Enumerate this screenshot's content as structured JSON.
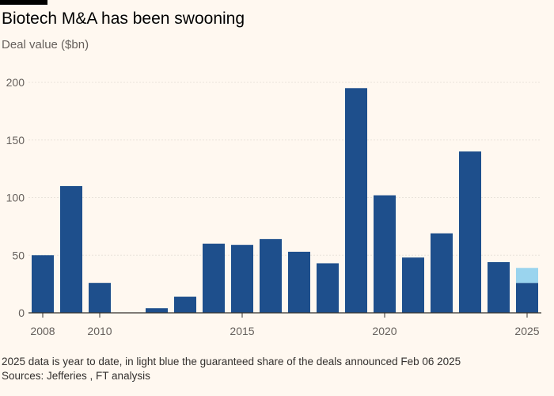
{
  "header": {
    "title": "Biotech M&A has been swooning",
    "subtitle": "Deal value ($bn)"
  },
  "footer": {
    "note": "2025 data is year to date, in light blue the guaranteed share of the deals announced Feb 06 2025",
    "source": "Sources: Jefferies , FT analysis"
  },
  "colors": {
    "background": "#fff8f0",
    "bar": "#1e4f8c",
    "bar_guaranteed": "#9ad4ee",
    "gridline": "#e9e2da",
    "axis": "#33302e",
    "tick_text": "#66605c"
  },
  "chart_data": {
    "type": "bar",
    "title": "Biotech M&A has been swooning",
    "ylabel": "Deal value ($bn)",
    "xlabel": "",
    "ylim": [
      0,
      200
    ],
    "yticks": [
      0,
      50,
      100,
      150,
      200
    ],
    "xticks": [
      2008,
      2010,
      2015,
      2020,
      2025
    ],
    "grid": true,
    "categories": [
      2008,
      2009,
      2010,
      2011,
      2012,
      2013,
      2014,
      2015,
      2016,
      2017,
      2018,
      2019,
      2020,
      2021,
      2022,
      2023,
      2024,
      2025
    ],
    "series": [
      {
        "values": [
          50,
          110,
          26,
          0,
          4,
          14,
          60,
          59,
          64,
          53,
          43,
          195,
          102,
          48,
          69,
          140,
          44,
          26
        ]
      },
      {
        "values": [
          0,
          0,
          0,
          0,
          0,
          0,
          0,
          0,
          0,
          0,
          0,
          0,
          0,
          0,
          0,
          0,
          0,
          13
        ]
      }
    ],
    "stacked": true
  }
}
